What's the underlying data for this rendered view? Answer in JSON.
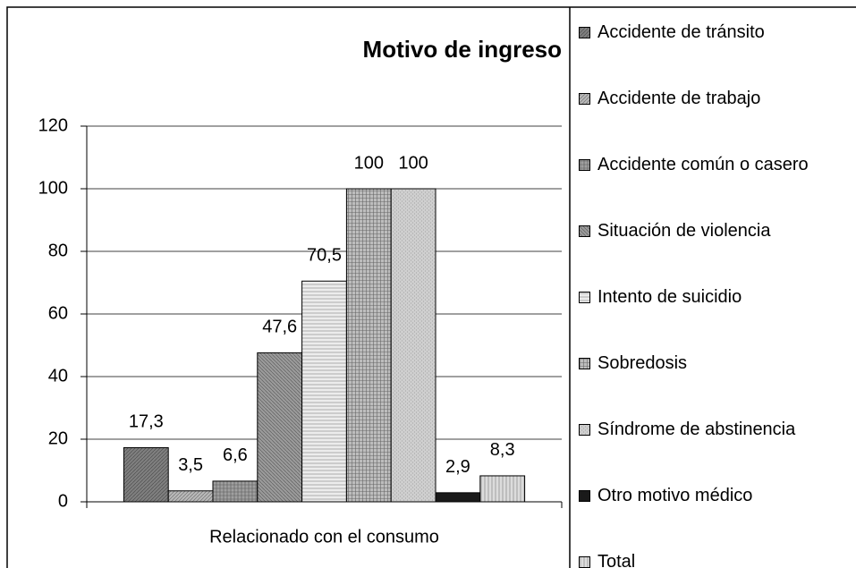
{
  "chart_data": {
    "type": "bar",
    "title": "Motivo de ingreso",
    "categories": [
      "Relacionado con el consumo"
    ],
    "series": [
      {
        "name": "Accidente de tránsito",
        "color": "#7f7f7f",
        "values": [
          17.3
        ],
        "value_labels": [
          "17,3"
        ]
      },
      {
        "name": "Accidente de trabajo",
        "color": "#b8b8b8",
        "values": [
          3.5
        ],
        "value_labels": [
          "3,5"
        ]
      },
      {
        "name": "Accidente común o casero",
        "color": "#a0a0a0",
        "values": [
          6.6
        ],
        "value_labels": [
          "6,6"
        ]
      },
      {
        "name": "Situación de violencia",
        "color": "#9a9a9a",
        "values": [
          47.6
        ],
        "value_labels": [
          "47,6"
        ]
      },
      {
        "name": "Intento de suicidio",
        "color": "#ececec",
        "values": [
          70.5
        ],
        "value_labels": [
          "70,5"
        ]
      },
      {
        "name": "Sobredosis",
        "color": "#bdbdbd",
        "values": [
          100
        ],
        "value_labels": [
          "100"
        ]
      },
      {
        "name": "Síndrome de abstinencia",
        "color": "#cfcfcf",
        "values": [
          100
        ],
        "value_labels": [
          "100"
        ]
      },
      {
        "name": "Otro motivo médico",
        "color": "#1a1a1a",
        "values": [
          2.9
        ],
        "value_labels": [
          "2,9"
        ]
      },
      {
        "name": "Total",
        "color": "#dcdcdc",
        "values": [
          8.3
        ],
        "value_labels": [
          "8,3"
        ]
      }
    ],
    "ylim": [
      0,
      120
    ],
    "yticks": [
      0,
      20,
      40,
      60,
      80,
      100,
      120
    ],
    "grid": true
  }
}
